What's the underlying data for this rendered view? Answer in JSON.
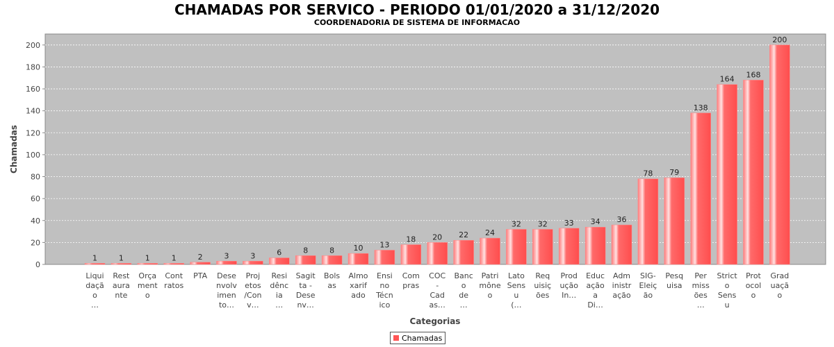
{
  "chart_data": {
    "type": "bar",
    "title": "CHAMADAS POR SERVICO - PERIODO 01/01/2020 a 31/12/2020",
    "subtitle": "COORDENADORIA DE SISTEMA DE INFORMACAO",
    "xlabel": "Categorias",
    "ylabel": "Chamadas",
    "ylim": [
      0,
      210
    ],
    "yticks": [
      0,
      20,
      40,
      60,
      80,
      100,
      120,
      140,
      160,
      180,
      200
    ],
    "grid": true,
    "legend_position": "bottom",
    "plot_background": "#c0c0c0",
    "bar_color": "#ff5555",
    "categories": [
      [
        "Liqui",
        "daçã",
        "o",
        "…"
      ],
      [
        "Rest",
        "aura",
        "nte"
      ],
      [
        "Orça",
        "ment",
        "o"
      ],
      [
        "Cont",
        "ratos"
      ],
      [
        "PTA"
      ],
      [
        "Dese",
        "nvolv",
        "imen",
        "to…"
      ],
      [
        "Proj",
        "etos",
        "/Con",
        "v…"
      ],
      [
        "Resi",
        "dênc",
        "ia",
        "…"
      ],
      [
        "Sagit",
        "ta -",
        "Dese",
        "nv…"
      ],
      [
        "Bols",
        "as"
      ],
      [
        "Almo",
        "xarif",
        "ado"
      ],
      [
        "Ensi",
        "no",
        "Técn",
        "ico"
      ],
      [
        "Com",
        "pras"
      ],
      [
        "COC",
        "-",
        "Cad",
        "as…"
      ],
      [
        "Banc",
        "o",
        "de",
        "…"
      ],
      [
        "Patri",
        "mône",
        "o"
      ],
      [
        "Lato",
        "Sens",
        "u",
        "(…"
      ],
      [
        "Req",
        "uisiç",
        "ões"
      ],
      [
        "Prod",
        "ução",
        "In…"
      ],
      [
        "Educ",
        "ação",
        "a",
        "Di…"
      ],
      [
        "Adm",
        "inistr",
        "ação"
      ],
      [
        "SIG-",
        "Eleiç",
        "ão"
      ],
      [
        "Pesq",
        "uisa"
      ],
      [
        "Per",
        "miss",
        "ões",
        "…"
      ],
      [
        "Strict",
        "o",
        "Sens",
        "u"
      ],
      [
        "Prot",
        "ocol",
        "o"
      ],
      [
        "Grad",
        "uaçã",
        "o"
      ]
    ],
    "series": [
      {
        "name": "Chamadas",
        "values": [
          1,
          1,
          1,
          1,
          2,
          3,
          3,
          6,
          8,
          8,
          10,
          13,
          18,
          20,
          22,
          24,
          32,
          32,
          33,
          34,
          36,
          78,
          79,
          138,
          164,
          168,
          200
        ]
      }
    ]
  }
}
